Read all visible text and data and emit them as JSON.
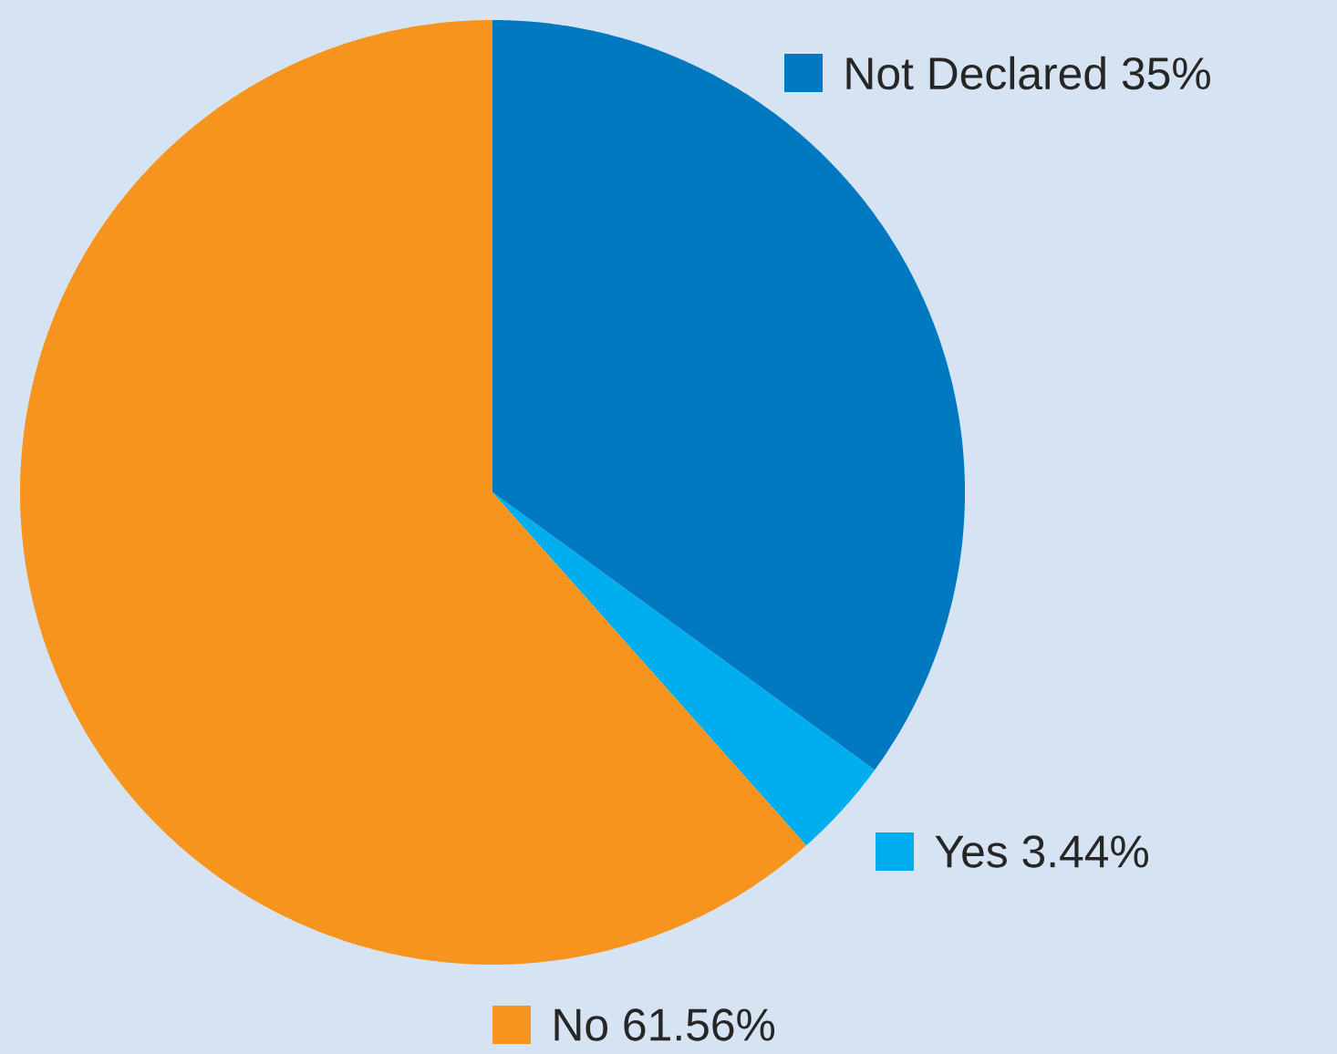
{
  "chart_data": {
    "type": "pie",
    "categories": [
      "Not Declared",
      "Yes",
      "No"
    ],
    "values": [
      35,
      3.44,
      61.56
    ],
    "value_labels": [
      "35%",
      "3.44%",
      "61.56%"
    ],
    "colors": [
      "#0079c1",
      "#00aeef",
      "#f7941d"
    ],
    "legend": "right"
  }
}
